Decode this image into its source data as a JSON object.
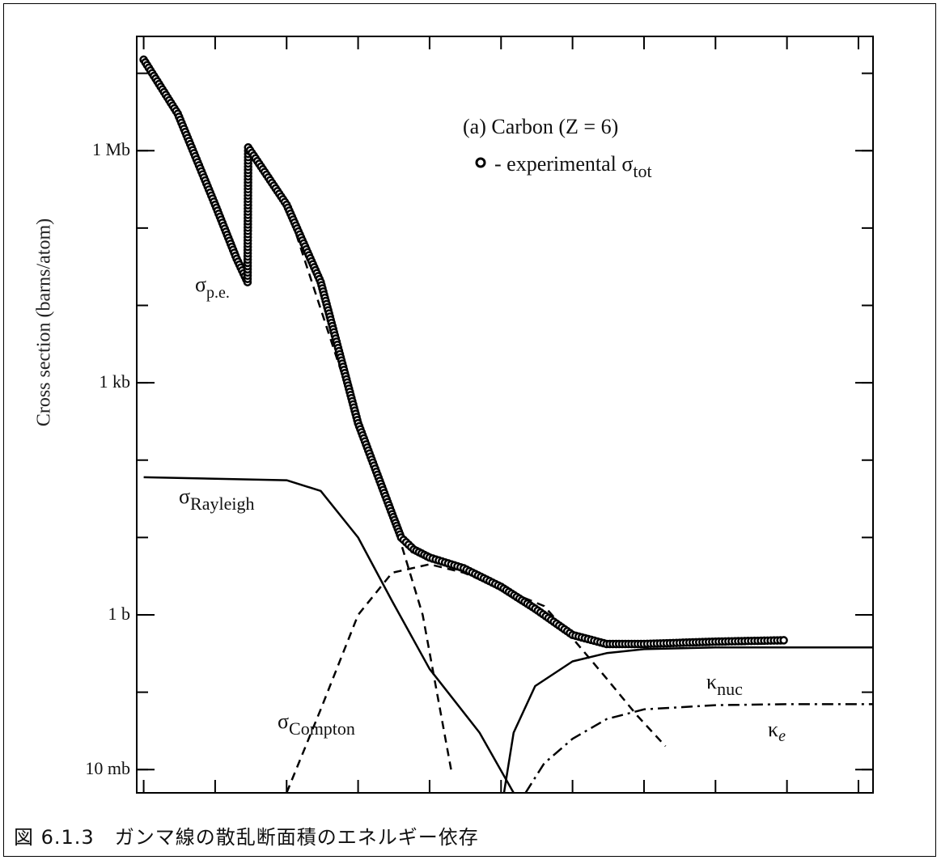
{
  "caption": "図 6.1.3　ガンマ線の散乱断面積のエネルギー依存",
  "chart_data": {
    "type": "line",
    "title": "(a) Carbon (Z = 6)",
    "legend_marker_text": "- experimental σ",
    "legend_marker_sub": "tot",
    "ylabel": "Cross section  (barns/atom)",
    "xlabel": "",
    "y_scale": "log",
    "ylim": [
      0.005,
      30000000
    ],
    "y_ticks": [
      {
        "value": 1000000,
        "label": "1 Mb"
      },
      {
        "value": 1000,
        "label": "1 kb"
      },
      {
        "value": 1,
        "label": "1 b"
      },
      {
        "value": 0.01,
        "label": "10 mb"
      }
    ],
    "x_scale": "log",
    "xlim": [
      8,
      160000000000
    ],
    "curve_labels": [
      {
        "main": "σ",
        "sub": "p.e.",
        "name": "photoelectric-label"
      },
      {
        "main": "σ",
        "sub": "Rayleigh",
        "name": "rayleigh-label"
      },
      {
        "main": "σ",
        "sub": "Compton",
        "name": "compton-label"
      },
      {
        "main": "κ",
        "sub": "nuc",
        "name": "kappa-nuc-label"
      },
      {
        "main": "κ",
        "sub": "e",
        "name": "kappa-e-label"
      }
    ],
    "series": [
      {
        "key": "pe",
        "style": "dashed",
        "x": [
          10,
          30,
          100,
          200,
          284,
          284.01,
          1000,
          10000,
          30000,
          80000,
          200000
        ],
        "y": [
          15000000,
          3000000,
          200000,
          40000,
          20000,
          1100000,
          200000,
          300,
          20,
          1,
          0.01
        ]
      },
      {
        "key": "rayleigh",
        "style": "solid",
        "x": [
          10,
          1000,
          3000,
          10000,
          30000,
          100000,
          500000,
          1500000
        ],
        "y": [
          60,
          55,
          40,
          10,
          1.5,
          0.2,
          0.03,
          0.005
        ]
      },
      {
        "key": "compton",
        "style": "dashed",
        "x": [
          1000,
          3000,
          10000,
          30000,
          100000,
          300000,
          1000000,
          4000000,
          10000000,
          30000000,
          80000000,
          200000000
        ],
        "y": [
          0.005,
          0.06,
          1,
          3.5,
          4.5,
          3.5,
          2.2,
          1.3,
          0.5,
          0.15,
          0.05,
          0.02
        ]
      },
      {
        "key": "kappa_nuc",
        "style": "solid",
        "x": [
          1100000,
          1500000,
          3000000,
          10000000,
          30000000,
          100000000,
          1000000000,
          10000000000,
          160000000000
        ],
        "y": [
          0.005,
          0.03,
          0.12,
          0.25,
          0.32,
          0.36,
          0.38,
          0.38,
          0.38
        ]
      },
      {
        "key": "kappa_e",
        "style": "dashdot",
        "x": [
          2200000,
          4000000,
          10000000,
          30000000,
          100000000,
          1000000000,
          10000000000,
          160000000000
        ],
        "y": [
          0.005,
          0.012,
          0.025,
          0.045,
          0.06,
          0.068,
          0.07,
          0.07
        ]
      },
      {
        "key": "tot",
        "style": "markers",
        "x": [
          10,
          30,
          100,
          200,
          284,
          290,
          1000,
          3000,
          10000,
          30000,
          40000,
          60000,
          100000,
          300000,
          1000000,
          3000000,
          10000000,
          30000000,
          100000000,
          1000000000,
          10000000000
        ],
        "y": [
          15000000,
          3000000,
          200000,
          40000,
          20000,
          1100000,
          200000,
          20000,
          300,
          20,
          10,
          7,
          5.5,
          4,
          2.3,
          1.2,
          0.55,
          0.42,
          0.42,
          0.45,
          0.47
        ]
      }
    ]
  }
}
